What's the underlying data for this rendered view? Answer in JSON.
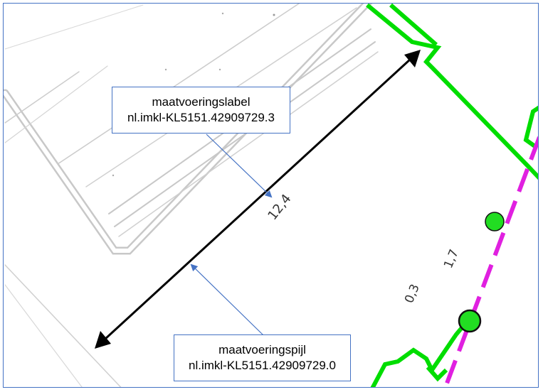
{
  "callouts": {
    "label": {
      "title": "maatvoeringslabel",
      "id": "nl.imkl-KL5151.42909729.3"
    },
    "arrow": {
      "title": "maatvoeringspijl",
      "id": "nl.imkl-KL5151.42909729.0"
    }
  },
  "map_labels": {
    "dimension_value": "12,4",
    "depth_1": "1,7",
    "depth_2": "0,3"
  },
  "colors": {
    "frame_border": "#4472c4",
    "pointer": "#4472c4",
    "building_outline": "#00dd00",
    "cable_line": "#e020e0",
    "marker_fill": "#22dd22",
    "dimension_arrow": "#000000",
    "background_lines": "#c8c8c8"
  }
}
